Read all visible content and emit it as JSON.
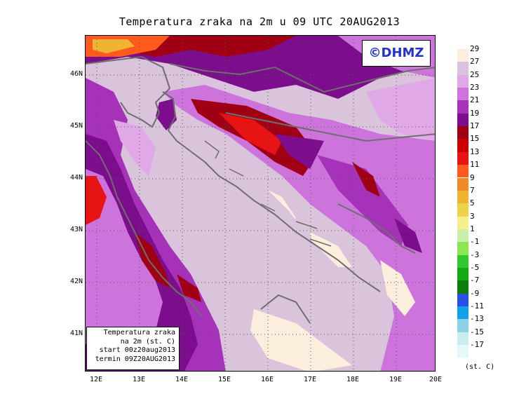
{
  "title": "Temperatura zraka na 2m u 09 UTC 20AUG2013",
  "logo": "©DHMZ",
  "infobox": {
    "line1": "Temperatura zraka",
    "line2": "na 2m (st. C)",
    "line3": "start 00z20aug2013",
    "line4": "termin 09Z20AUG2013"
  },
  "axes": {
    "lat_labels": [
      "46N",
      "45N",
      "44N",
      "43N",
      "42N",
      "41N"
    ],
    "lon_labels": [
      "12E",
      "13E",
      "14E",
      "15E",
      "16E",
      "17E",
      "18E",
      "19E",
      "20E"
    ]
  },
  "legend": {
    "unit": "(st. C)",
    "labels": [
      "29",
      "27",
      "25",
      "23",
      "21",
      "19",
      "17",
      "15",
      "13",
      "11",
      "9",
      "7",
      "5",
      "3",
      "1",
      "-1",
      "-3",
      "-5",
      "-7",
      "-9",
      "-11",
      "-13",
      "-15",
      "-17"
    ],
    "colors": [
      "#fbeedd",
      "#d9c4db",
      "#e0a8e6",
      "#cc73dc",
      "#a632b9",
      "#7c0d8c",
      "#a00014",
      "#cc0000",
      "#e81414",
      "#ff5a1e",
      "#f08c28",
      "#f0b432",
      "#eed24a",
      "#f5f08c",
      "#c8f0aa",
      "#8ce650",
      "#32c832",
      "#14aa14",
      "#0a7d0a",
      "#2850e6",
      "#14a0e6",
      "#8cd2e6",
      "#c8ecf0",
      "#e6f8fa"
    ]
  },
  "colors": {
    "sea": "#d9c4db",
    "coast_line": "#6e6e6e"
  }
}
